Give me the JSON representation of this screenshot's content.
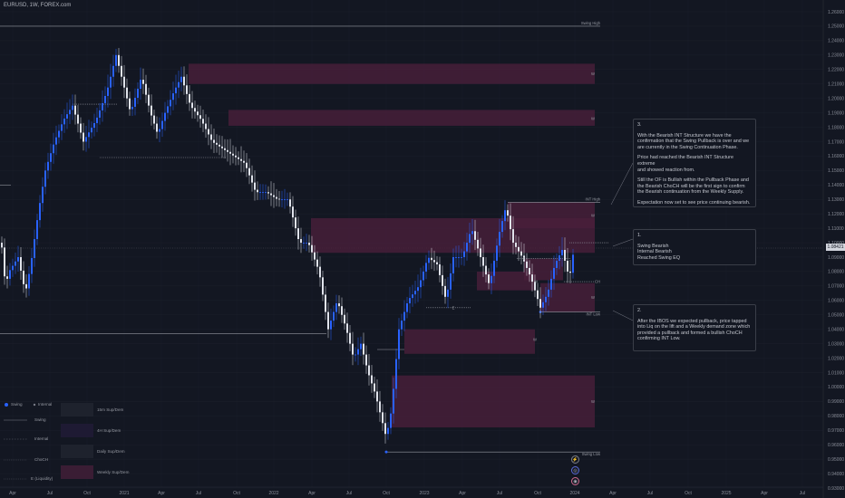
{
  "header": {
    "symbol": "EURUSD, 1W, FOREX.com"
  },
  "price_axis": {
    "labels": [
      "1.26000",
      "1.25000",
      "1.24000",
      "1.23000",
      "1.22000",
      "1.21000",
      "1.20000",
      "1.19000",
      "1.18000",
      "1.17000",
      "1.16000",
      "1.15000",
      "1.14000",
      "1.13000",
      "1.12000",
      "1.11000",
      "1.10000",
      "1.09000",
      "1.08000",
      "1.07000",
      "1.06000",
      "1.05000",
      "1.04000",
      "1.03000",
      "1.02000",
      "1.01000",
      "1.00000",
      "0.99000",
      "0.98000",
      "0.97000",
      "0.96000",
      "0.95000",
      "0.94000",
      "0.93000"
    ],
    "current_price": "1.08421"
  },
  "time_axis": {
    "labels": [
      "Apr",
      "Jul",
      "Oct",
      "2021",
      "Apr",
      "Jul",
      "Oct",
      "2022",
      "Apr",
      "Jul",
      "Oct",
      "2023",
      "Apr",
      "Jul",
      "Oct",
      "2024",
      "Apr",
      "Jul",
      "Oct",
      "2025",
      "Apr",
      "Jul"
    ]
  },
  "structure_labels": {
    "swing_high": "Swing High",
    "int_high": "INT High",
    "choch": "CH",
    "int_low": "INT Low",
    "swing_low": "Swing Low",
    "w": "W",
    "e": "E"
  },
  "notes": {
    "n3": {
      "number": "3.",
      "lines": [
        "With the Bearish INT Structure we have the",
        "confirmation that the Swing Pullback is over and we",
        "are currently in the Swing Continuation Phase.",
        "",
        "Price had reached the Bearish INT Structure extreme",
        "and showed reaction from.",
        "",
        "Still the OF is Bullish within the Pullback Phase and",
        "the Bearish ChoCH will be the first sign to confirm",
        "the Bearish continuation from the Weekly Supply.",
        "",
        "Expectation now set to see price continuing bearish."
      ]
    },
    "n1": {
      "number": "1.",
      "lines": [
        "Swing Bearish",
        "Internal Bearish",
        "Reached Swing EQ"
      ]
    },
    "n2": {
      "number": "2.",
      "lines": [
        "After the IBOS we expected pullback, price tapped",
        "into Liq on the lift and a Weekly demand zone which",
        "provided a pullback and formed a bullish ChoCH",
        "confirming INT Low."
      ]
    }
  },
  "legend": {
    "swing": "Swing",
    "internal": "Internal",
    "swing_line": "Swing",
    "internal_line": "Internal",
    "choch": "ChoCH",
    "eq": "E (Liquidity)",
    "zones": [
      "15m Sup/Dem",
      "4H Sup/Dem",
      "Daily Sup/Dem",
      "Weekly Sup/Dem"
    ]
  },
  "colors": {
    "bull": "#2962ff",
    "bear": "#e0e3eb",
    "zone": "#4a1f3b",
    "bg": "#131722"
  }
}
